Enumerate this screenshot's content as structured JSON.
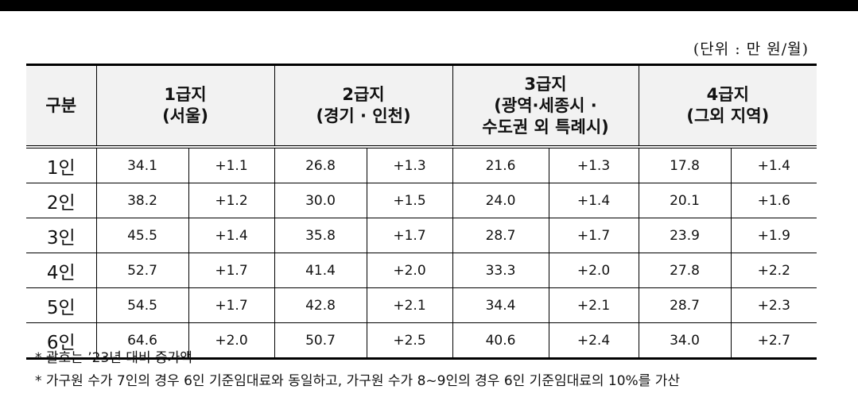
{
  "unit": "(단위 : 만 원/월)",
  "table": {
    "header": [
      [
        "구분"
      ],
      [
        "1급지",
        "(서울)"
      ],
      [
        "2급지",
        "(경기 · 인천)"
      ],
      [
        "3급지",
        "(광역·세종시 ·",
        "수도권 외 특례시)"
      ],
      [
        "4급지",
        "(그외 지역)"
      ]
    ],
    "rows": [
      [
        "1인",
        "34.1",
        "+1.1",
        "26.8",
        "+1.3",
        "21.6",
        "+1.3",
        "17.8",
        "+1.4"
      ],
      [
        "2인",
        "38.2",
        "+1.2",
        "30.0",
        "+1.5",
        "24.0",
        "+1.4",
        "20.1",
        "+1.6"
      ],
      [
        "3인",
        "45.5",
        "+1.4",
        "35.8",
        "+1.7",
        "28.7",
        "+1.7",
        "23.9",
        "+1.9"
      ],
      [
        "4인",
        "52.7",
        "+1.7",
        "41.4",
        "+2.0",
        "33.3",
        "+2.0",
        "27.8",
        "+2.2"
      ],
      [
        "5인",
        "54.5",
        "+1.7",
        "42.8",
        "+2.1",
        "34.4",
        "+2.1",
        "28.7",
        "+2.3"
      ],
      [
        "6인",
        "64.6",
        "+2.0",
        "50.7",
        "+2.5",
        "40.6",
        "+2.4",
        "34.0",
        "+2.7"
      ]
    ]
  },
  "notes": [
    "* 괄호는 ’23년 대비 증가액",
    "* 가구원 수가 7인의 경우 6인 기준임대료와 동일하고, 가구원 수가 8~9인의 경우 6인 기준임대료의 10%를 가산"
  ]
}
